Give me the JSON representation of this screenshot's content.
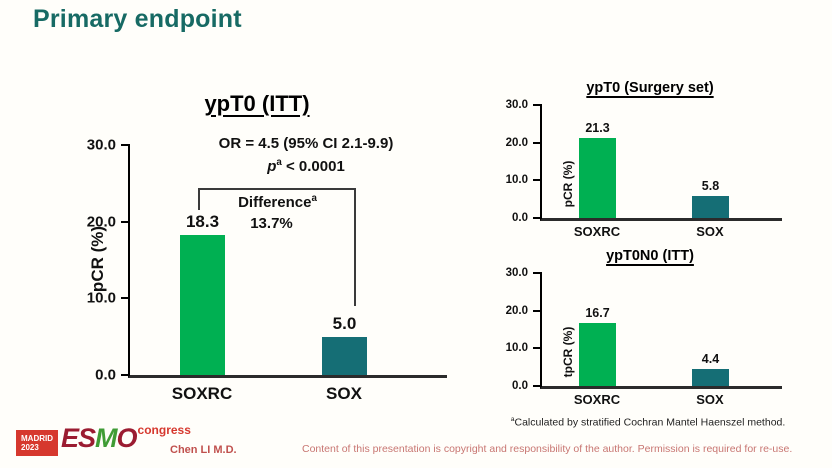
{
  "slide": {
    "title": "Primary endpoint",
    "author": "Chen LI M.D.",
    "footnote_sup": "a",
    "footnote_text": "Calculated by stratified Cochran Mantel Haenszel method.",
    "copyright": "Content of this presentation is copyright and responsibility of the author. Permission is required for re-use."
  },
  "logo": {
    "city": "MADRID",
    "year": "2023",
    "letters": [
      "E",
      "S",
      "M",
      "O"
    ],
    "event": "congress"
  },
  "colors": {
    "bar_soxrc": "#00b052",
    "bar_sox": "#156e75",
    "title_teal": "#176a64",
    "footer_red": "#c0504d"
  },
  "chart_data": [
    {
      "type": "bar",
      "title": "ypT0 (ITT)",
      "ylabel": "pCR (%)",
      "ylim": [
        0,
        30
      ],
      "yticks": [
        "30.0",
        "20.0",
        "10.0",
        "0.0"
      ],
      "categories": [
        "SOXRC",
        "SOX"
      ],
      "values": [
        18.3,
        5.0
      ],
      "value_labels": [
        "18.3",
        "5.0"
      ],
      "grid": false,
      "annotations": {
        "or_line": "OR = 4.5 (95% CI 2.1-9.9)",
        "p_symbol": "p",
        "p_sup": "a",
        "p_rest": " < 0.0001",
        "difference_label": "Difference",
        "difference_sup": "a",
        "difference_value": "13.7%"
      }
    },
    {
      "type": "bar",
      "title": "ypT0 (Surgery set)",
      "ylabel": "pCR (%)",
      "ylim": [
        0,
        30
      ],
      "yticks": [
        "30.0",
        "20.0",
        "10.0",
        "0.0"
      ],
      "categories": [
        "SOXRC",
        "SOX"
      ],
      "values": [
        21.3,
        5.8
      ],
      "value_labels": [
        "21.3",
        "5.8"
      ],
      "grid": false
    },
    {
      "type": "bar",
      "title": "ypT0N0 (ITT)",
      "ylabel": "tpCR (%)",
      "ylim": [
        0,
        30
      ],
      "yticks": [
        "30.0",
        "20.0",
        "10.0",
        "0.0"
      ],
      "categories": [
        "SOXRC",
        "SOX"
      ],
      "values": [
        16.7,
        4.4
      ],
      "value_labels": [
        "16.7",
        "4.4"
      ],
      "grid": false
    }
  ]
}
